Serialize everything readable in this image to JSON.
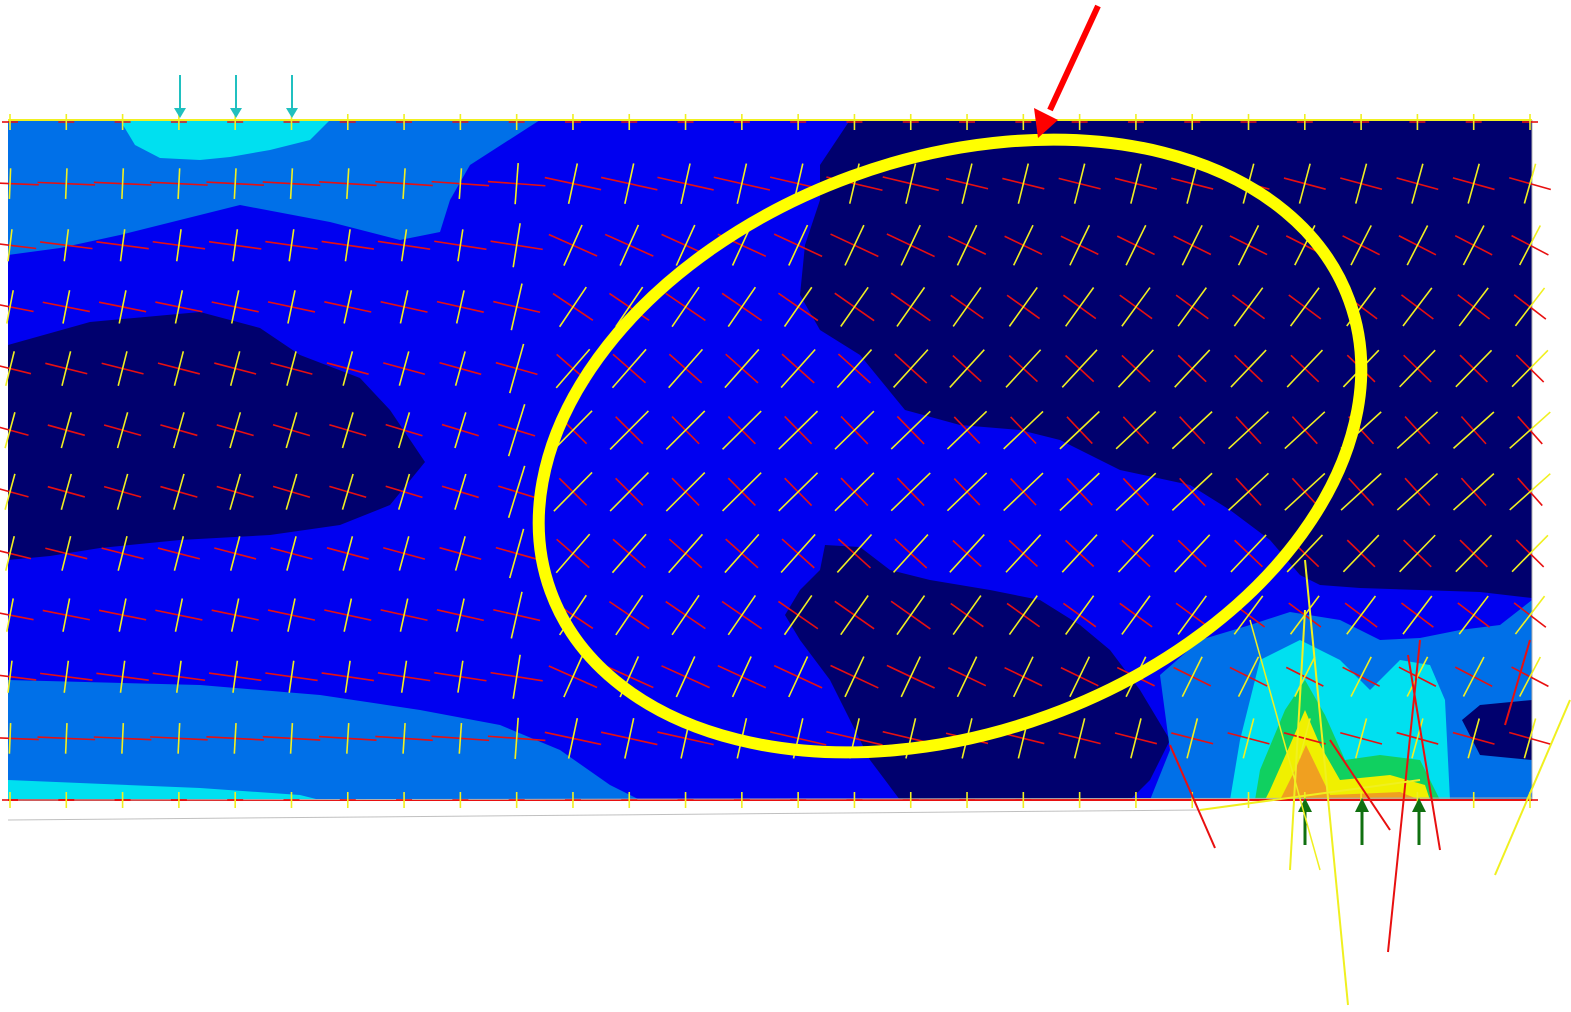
{
  "figure": {
    "kind": "finite-element stress contour plot with principal stress vectors",
    "palette": {
      "level_darkest": "#00006e",
      "level_dark": "#0000f0",
      "level_mid": "#0070e8",
      "level_light": "#00e0f0",
      "level_green": "#10d060",
      "level_yellow": "#f0f000",
      "level_orange": "#f0a020",
      "tension_vector": "#e81010",
      "compression_vector": "#f0f020",
      "support_arrow": "#107010",
      "load_arrow": "#20c0c0",
      "highlight_ellipse": "#ffff00",
      "pointer_arrow": "#ff0000",
      "mesh_edge": "#b0b0b0"
    },
    "annotations": {
      "highlight": "ellipse",
      "pointer": "red-arrow"
    }
  }
}
